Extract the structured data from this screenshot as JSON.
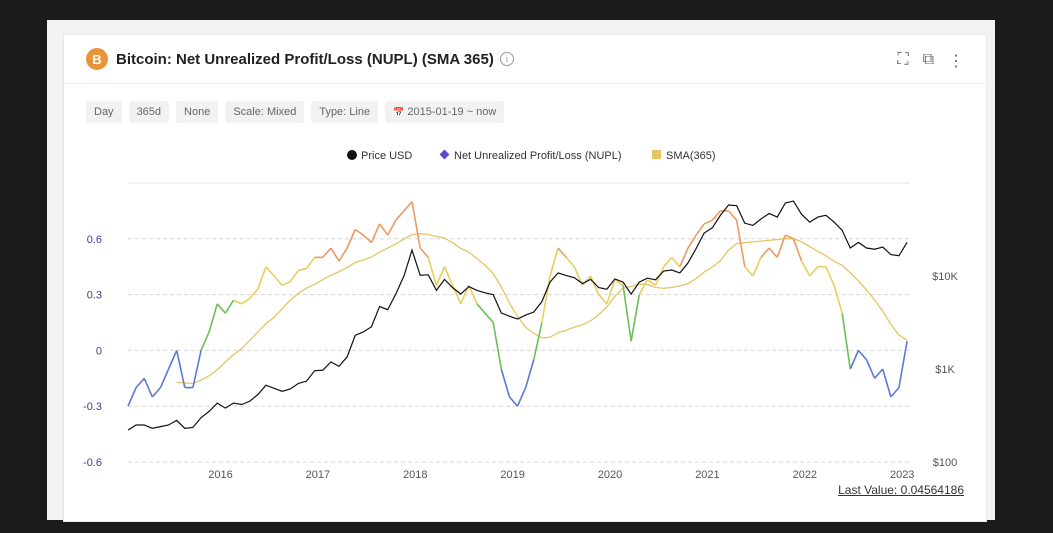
{
  "header": {
    "title": "Bitcoin: Net Unrealized Profit/Loss (NUPL) (SMA 365)",
    "coin_symbol": "B",
    "info_icon": "i"
  },
  "tools": {
    "fullscreen": "⛶",
    "popout": "⧉",
    "menu": "⋮"
  },
  "options": [
    "Day",
    "365d",
    "None",
    "Scale: Mixed",
    "Type: Line",
    "2015-01-19 ~ now"
  ],
  "calendar_icon": "📅",
  "last_value": "Last Value: 0.04564186",
  "chart_data": {
    "type": "line",
    "title": "Bitcoin: Net Unrealized Profit/Loss (NUPL) (SMA 365)",
    "legend": [
      "Price USD",
      "Net Unrealized Profit/Loss (NUPL)",
      "SMA(365)"
    ],
    "legend_placement": "top-center",
    "colors": {
      "price": "#111111",
      "legend_nupl": "#5b4bc4",
      "sma": "#e6c463",
      "band_neg": "#5b78d6",
      "band_low": "#6bbf59",
      "band_mid": "#e8cf5a",
      "band_high": "#ec9a63"
    },
    "bands": [
      0,
      0.25,
      0.5
    ],
    "x_start": 2015.05,
    "x_step_months": 1,
    "x_range": [
      2015.05,
      2023.08
    ],
    "x_ticks": [
      "2016",
      "2017",
      "2018",
      "2019",
      "2020",
      "2021",
      "2022",
      "2023"
    ],
    "y_left_ticks": [
      "0.6",
      "0.3",
      "0",
      "-0.3",
      "-0.6"
    ],
    "y_left_values": [
      0.6,
      0.3,
      0,
      -0.3,
      -0.6
    ],
    "y_left_range": [
      -0.6,
      0.9
    ],
    "y_right_ticks": [
      "$10K",
      "$1K",
      "$100"
    ],
    "y_right_values": [
      10000,
      1000,
      100
    ],
    "y_right_range_log": [
      100,
      100000
    ],
    "price": [
      220,
      250,
      250,
      230,
      240,
      250,
      280,
      230,
      235,
      300,
      350,
      430,
      380,
      430,
      415,
      450,
      530,
      670,
      620,
      575,
      610,
      700,
      740,
      960,
      970,
      1190,
      1070,
      1350,
      2300,
      2500,
      2850,
      4700,
      4340,
      6400,
      10000,
      19000,
      10200,
      10300,
      7000,
      9200,
      7500,
      6400,
      7700,
      7000,
      6600,
      6300,
      4000,
      3700,
      3450,
      3800,
      4100,
      5300,
      8600,
      10800,
      10100,
      9600,
      8300,
      9200,
      7500,
      7200,
      9300,
      8600,
      6400,
      8600,
      9500,
      9100,
      11300,
      11600,
      10800,
      13800,
      19700,
      29000,
      33000,
      45000,
      58000,
      57000,
      37000,
      35000,
      41000,
      47000,
      43000,
      61000,
      64000,
      46000,
      38000,
      43000,
      45000,
      38000,
      31000,
      20000,
      23000,
      20000,
      19400,
      20500,
      17000,
      16500,
      23000
    ],
    "nupl": [
      -0.3,
      -0.2,
      -0.15,
      -0.25,
      -0.2,
      -0.1,
      0,
      -0.2,
      -0.2,
      0,
      0.1,
      0.25,
      0.2,
      0.27,
      0.25,
      0.28,
      0.33,
      0.45,
      0.4,
      0.35,
      0.37,
      0.43,
      0.44,
      0.5,
      0.5,
      0.55,
      0.48,
      0.55,
      0.65,
      0.62,
      0.58,
      0.68,
      0.62,
      0.7,
      0.75,
      0.8,
      0.55,
      0.5,
      0.35,
      0.45,
      0.35,
      0.25,
      0.35,
      0.25,
      0.2,
      0.15,
      -0.1,
      -0.25,
      -0.3,
      -0.2,
      -0.05,
      0.15,
      0.4,
      0.55,
      0.5,
      0.45,
      0.35,
      0.4,
      0.3,
      0.25,
      0.38,
      0.35,
      0.05,
      0.3,
      0.38,
      0.35,
      0.45,
      0.5,
      0.45,
      0.55,
      0.62,
      0.68,
      0.7,
      0.75,
      0.75,
      0.7,
      0.45,
      0.4,
      0.5,
      0.55,
      0.5,
      0.62,
      0.6,
      0.48,
      0.4,
      0.45,
      0.45,
      0.35,
      0.2,
      -0.1,
      0.0,
      -0.05,
      -0.15,
      -0.1,
      -0.25,
      -0.2,
      0.05
    ],
    "sma_window_months": 12
  }
}
